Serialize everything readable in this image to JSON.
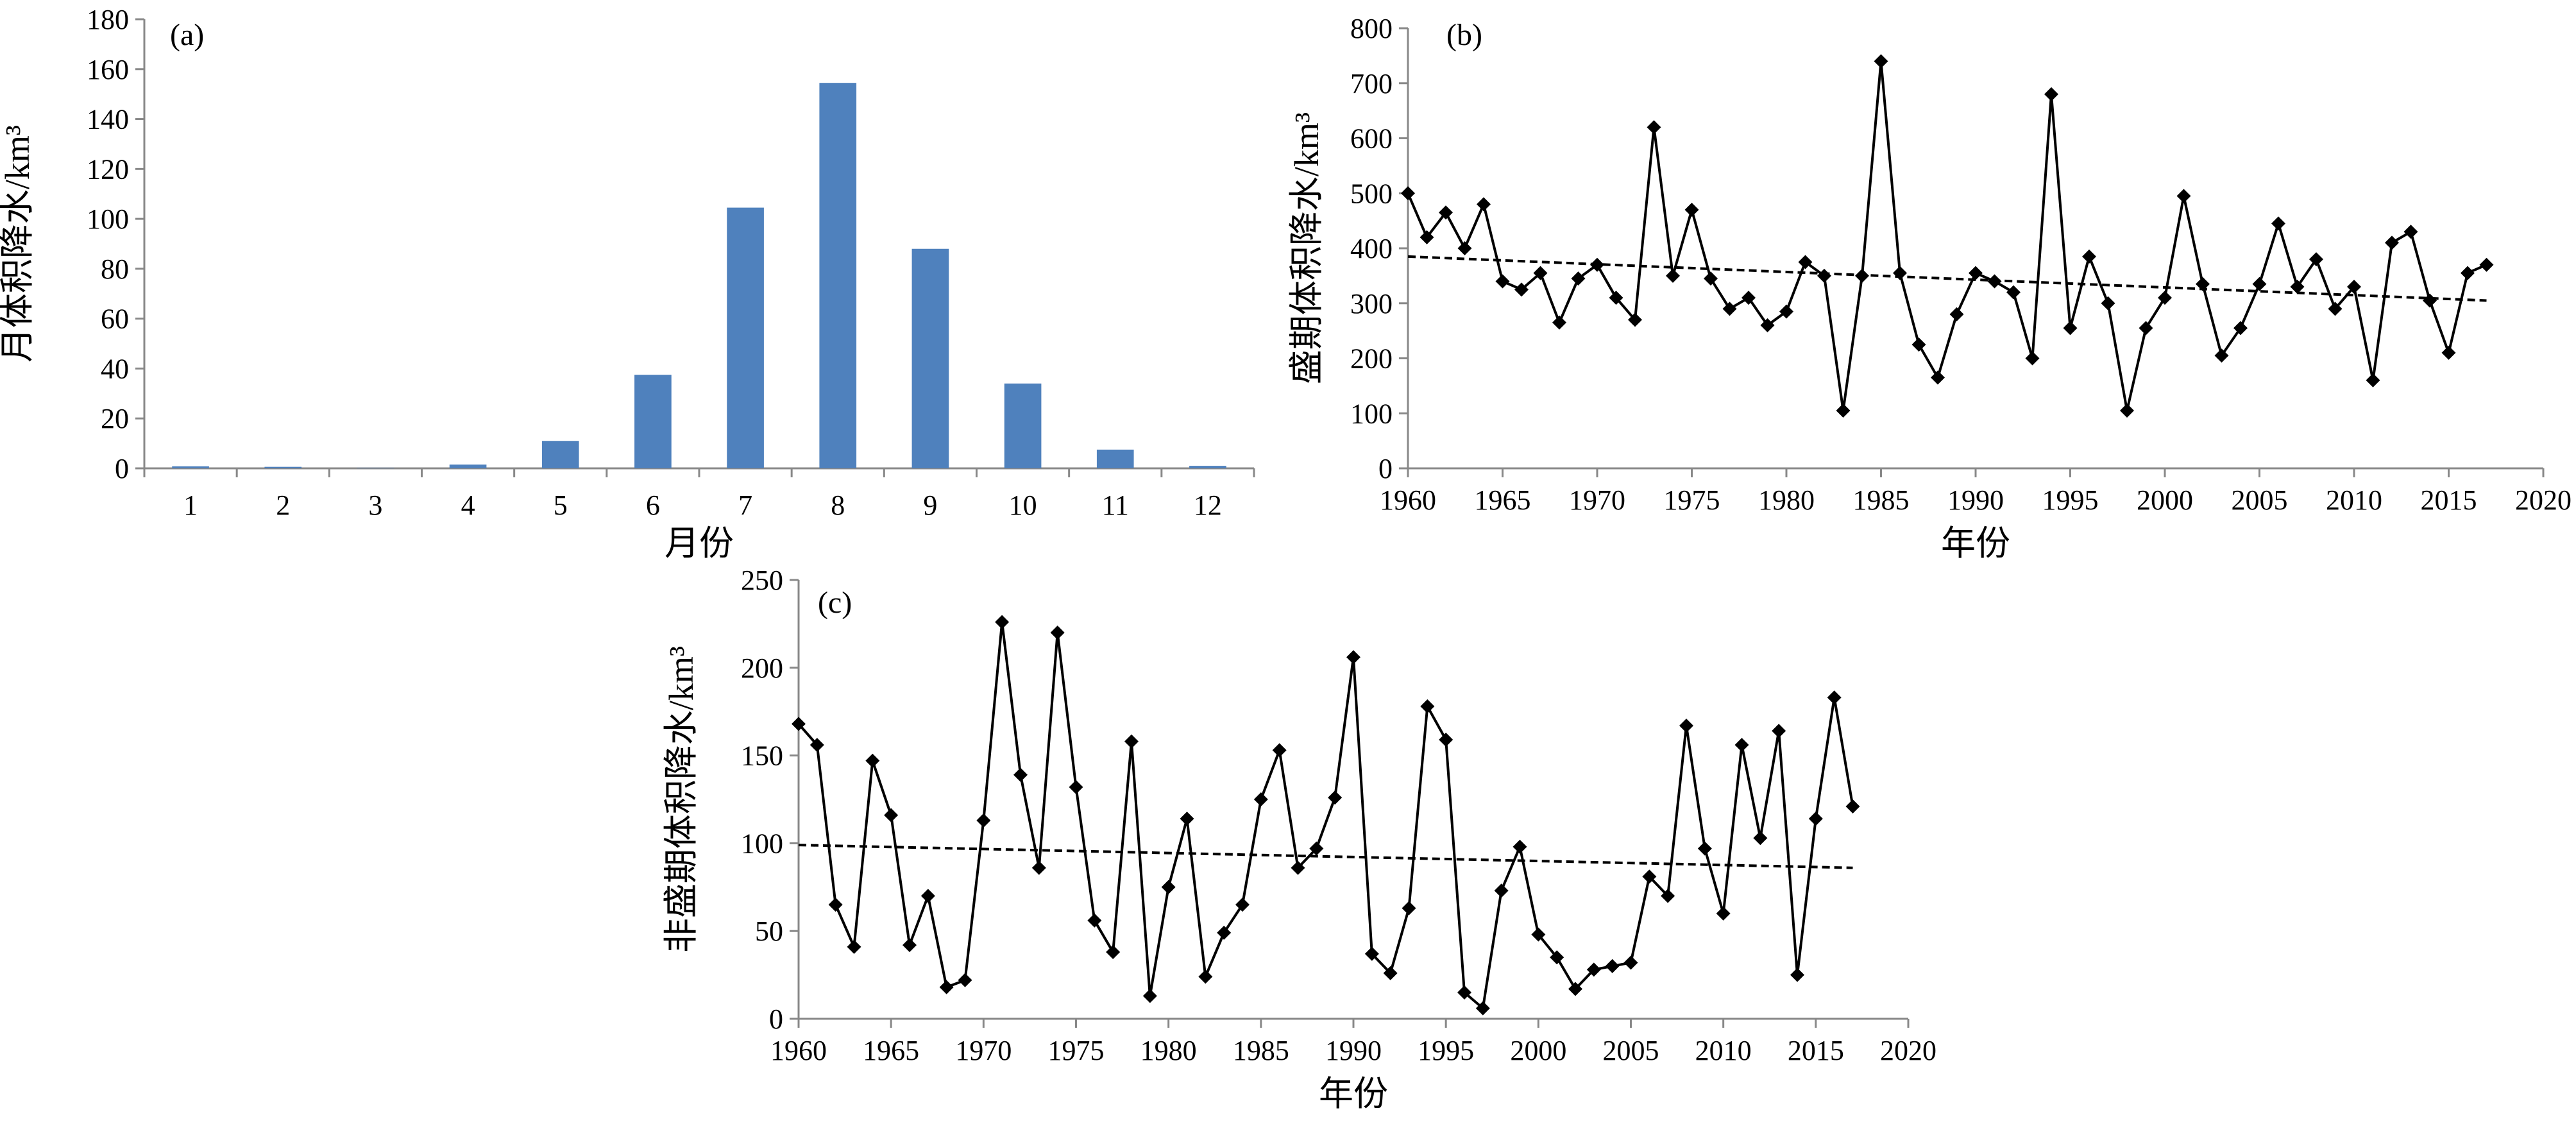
{
  "chart_data": [
    {
      "id": "a",
      "type": "bar",
      "panel_label": "(a)",
      "categories": [
        "1",
        "2",
        "3",
        "4",
        "5",
        "6",
        "7",
        "8",
        "9",
        "10",
        "11",
        "12"
      ],
      "values": [
        0.8,
        0.6,
        0.2,
        1.5,
        11,
        37.5,
        104.5,
        154.5,
        88,
        34,
        7.5,
        1
      ],
      "xlabel": "月份",
      "ylabel": "月体积降水/km³",
      "ylim": [
        0,
        180
      ],
      "yticks": [
        0,
        20,
        40,
        60,
        80,
        100,
        120,
        140,
        160,
        180
      ],
      "grid": false,
      "bar_color": "#4f81bd"
    },
    {
      "id": "b",
      "type": "line",
      "panel_label": "(b)",
      "x": [
        1960,
        1961,
        1962,
        1963,
        1964,
        1965,
        1966,
        1967,
        1968,
        1969,
        1970,
        1971,
        1972,
        1973,
        1974,
        1975,
        1976,
        1977,
        1978,
        1979,
        1980,
        1981,
        1982,
        1983,
        1984,
        1985,
        1986,
        1987,
        1988,
        1989,
        1990,
        1991,
        1992,
        1993,
        1994,
        1995,
        1996,
        1997,
        1998,
        1999,
        2000,
        2001,
        2002,
        2003,
        2004,
        2005,
        2006,
        2007,
        2008,
        2009,
        2010,
        2011,
        2012,
        2013,
        2014,
        2015,
        2016,
        2017
      ],
      "values": [
        500,
        420,
        465,
        400,
        480,
        340,
        325,
        355,
        265,
        345,
        370,
        310,
        270,
        620,
        350,
        470,
        345,
        290,
        310,
        260,
        285,
        375,
        350,
        105,
        350,
        740,
        355,
        225,
        165,
        280,
        355,
        340,
        320,
        200,
        680,
        255,
        385,
        300,
        105,
        255,
        310,
        495,
        335,
        205,
        255,
        335,
        445,
        330,
        380,
        290,
        330,
        160,
        410,
        430,
        305,
        210,
        355,
        370
      ],
      "trend": [
        385,
        305
      ],
      "xlabel": "年份",
      "ylabel": "盛期体积降水/km³",
      "xlim": [
        1960,
        2020
      ],
      "xticks": [
        1960,
        1965,
        1970,
        1975,
        1980,
        1985,
        1990,
        1995,
        2000,
        2005,
        2010,
        2015,
        2020
      ],
      "ylim": [
        0,
        800
      ],
      "yticks": [
        0,
        100,
        200,
        300,
        400,
        500,
        600,
        700,
        800
      ],
      "grid": false
    },
    {
      "id": "c",
      "type": "line",
      "panel_label": "(c)",
      "x": [
        1960,
        1961,
        1962,
        1963,
        1964,
        1965,
        1966,
        1967,
        1968,
        1969,
        1970,
        1971,
        1972,
        1973,
        1974,
        1975,
        1976,
        1977,
        1978,
        1979,
        1980,
        1981,
        1982,
        1983,
        1984,
        1985,
        1986,
        1987,
        1988,
        1989,
        1990,
        1991,
        1992,
        1993,
        1994,
        1995,
        1996,
        1997,
        1998,
        1999,
        2000,
        2001,
        2002,
        2003,
        2004,
        2005,
        2006,
        2007,
        2008,
        2009,
        2010,
        2011,
        2012,
        2013,
        2014,
        2015,
        2016,
        2017
      ],
      "values": [
        168,
        156,
        65,
        41,
        147,
        116,
        42,
        70,
        18,
        22,
        113,
        226,
        139,
        86,
        220,
        132,
        56,
        38,
        158,
        13,
        75,
        114,
        24,
        49,
        65,
        125,
        153,
        86,
        97,
        126,
        206,
        37,
        26,
        63,
        178,
        159,
        15,
        6,
        73,
        98,
        48,
        35,
        17,
        28,
        30,
        32,
        81,
        70,
        167,
        97,
        60,
        156,
        103,
        164,
        25,
        114,
        183,
        121
      ],
      "trend": [
        99,
        86
      ],
      "xlabel": "年份",
      "ylabel": "非盛期体积降水/km³",
      "xlim": [
        1960,
        2020
      ],
      "xticks": [
        1960,
        1965,
        1970,
        1975,
        1980,
        1985,
        1990,
        1995,
        2000,
        2005,
        2010,
        2015,
        2020
      ],
      "ylim": [
        0,
        250
      ],
      "yticks": [
        0,
        50,
        100,
        150,
        200,
        250
      ],
      "grid": false
    }
  ]
}
